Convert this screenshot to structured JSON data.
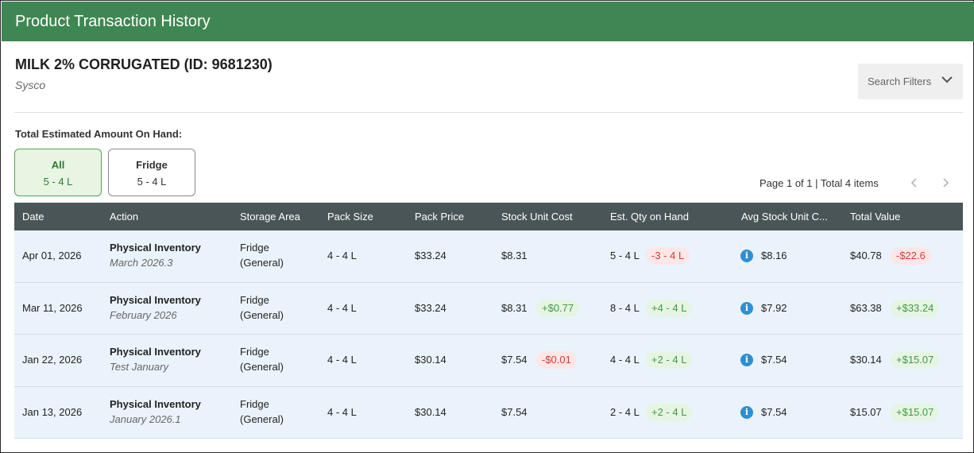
{
  "header": {
    "title": "Product Transaction History"
  },
  "product": {
    "name": "MILK 2% CORRUGATED (ID: 9681230)",
    "vendor": "Sysco"
  },
  "filters": {
    "label": "Search Filters",
    "icon": "chevron-down-icon"
  },
  "on_hand": {
    "label": "Total Estimated Amount On Hand:",
    "chips": [
      {
        "name": "All",
        "qty": "5 - 4 L",
        "selected": true
      },
      {
        "name": "Fridge",
        "qty": "5 - 4 L",
        "selected": false
      }
    ]
  },
  "pagination": {
    "text": "Page 1 of 1 | Total 4 items",
    "prev_icon": "chevron-left-icon",
    "next_icon": "chevron-right-icon"
  },
  "table": {
    "columns": [
      "Date",
      "Action",
      "Storage Area",
      "Pack Size",
      "Pack Price",
      "Stock Unit Cost",
      "Est. Qty on Hand",
      "Avg Stock Unit C...",
      "Total Value"
    ],
    "rows": [
      {
        "date": "Apr 01, 2026",
        "action": "Physical Inventory",
        "action_sub": "March 2026.3",
        "area": "Fridge",
        "area_sub": "(General)",
        "pack_size": "4 - 4 L",
        "pack_price": "$33.24",
        "unit_cost": "$8.31",
        "unit_cost_delta": "",
        "qty": "5 - 4 L",
        "qty_delta": "-3 - 4 L",
        "avg_cost": "$8.16",
        "total": "$40.78",
        "total_delta": "-$22.6"
      },
      {
        "date": "Mar 11, 2026",
        "action": "Physical Inventory",
        "action_sub": "February 2026",
        "area": "Fridge",
        "area_sub": "(General)",
        "pack_size": "4 - 4 L",
        "pack_price": "$33.24",
        "unit_cost": "$8.31",
        "unit_cost_delta": "+$0.77",
        "qty": "8 - 4 L",
        "qty_delta": "+4 - 4 L",
        "avg_cost": "$7.92",
        "total": "$63.38",
        "total_delta": "+$33.24"
      },
      {
        "date": "Jan 22, 2026",
        "action": "Physical Inventory",
        "action_sub": "Test January",
        "area": "Fridge",
        "area_sub": "(General)",
        "pack_size": "4 - 4 L",
        "pack_price": "$30.14",
        "unit_cost": "$7.54",
        "unit_cost_delta": "-$0.01",
        "qty": "4 - 4 L",
        "qty_delta": "+2 - 4 L",
        "avg_cost": "$7.54",
        "total": "$30.14",
        "total_delta": "+$15.07"
      },
      {
        "date": "Jan 13, 2026",
        "action": "Physical Inventory",
        "action_sub": "January 2026.1",
        "area": "Fridge",
        "area_sub": "(General)",
        "pack_size": "4 - 4 L",
        "pack_price": "$30.14",
        "unit_cost": "$7.54",
        "unit_cost_delta": "",
        "qty": "2 - 4 L",
        "qty_delta": "+2 - 4 L",
        "avg_cost": "$7.54",
        "total": "$15.07",
        "total_delta": "+$15.07"
      }
    ]
  },
  "colors": {
    "header_bg": "#3f8752",
    "table_head_bg": "#4a5558",
    "row_bg": "#eaf3fb",
    "positive": "#3f9a46",
    "negative": "#d83a3a",
    "info": "#2f8fd0"
  }
}
